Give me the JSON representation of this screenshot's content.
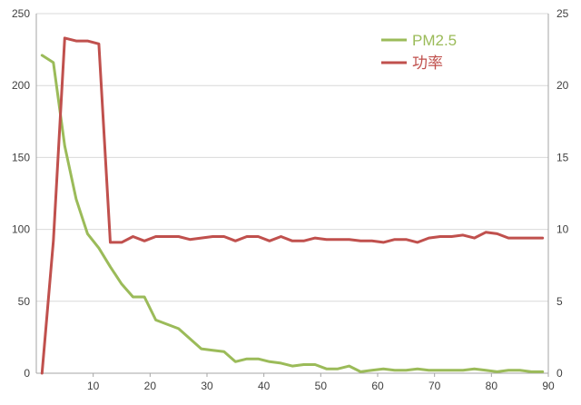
{
  "chart_data": {
    "type": "line",
    "x": [
      1,
      3,
      5,
      7,
      9,
      11,
      13,
      15,
      17,
      19,
      21,
      23,
      25,
      27,
      29,
      31,
      33,
      35,
      37,
      39,
      41,
      43,
      45,
      47,
      49,
      51,
      53,
      55,
      57,
      59,
      61,
      63,
      65,
      67,
      69,
      71,
      73,
      75,
      77,
      79,
      81,
      83,
      85,
      87,
      89
    ],
    "series": [
      {
        "name": "PM2.5",
        "axis": "left",
        "color": "#9bbb59",
        "values": [
          221,
          216,
          158,
          121,
          97,
          87,
          74,
          62,
          53,
          53,
          37,
          34,
          31,
          24,
          17,
          16,
          15,
          8,
          10,
          10,
          8,
          7,
          5,
          6,
          6,
          3,
          3,
          5,
          1,
          2,
          3,
          2,
          2,
          3,
          2,
          2,
          2,
          2,
          3,
          2,
          1,
          2,
          2,
          1,
          1
        ]
      },
      {
        "name": "功率",
        "axis": "right",
        "color": "#c0504d",
        "values": [
          0,
          9.2,
          23.3,
          23.1,
          23.1,
          22.9,
          9.1,
          9.1,
          9.5,
          9.2,
          9.5,
          9.5,
          9.5,
          9.3,
          9.4,
          9.5,
          9.5,
          9.2,
          9.5,
          9.5,
          9.2,
          9.5,
          9.2,
          9.2,
          9.4,
          9.3,
          9.3,
          9.3,
          9.2,
          9.2,
          9.1,
          9.3,
          9.3,
          9.1,
          9.4,
          9.5,
          9.5,
          9.6,
          9.4,
          9.8,
          9.7,
          9.4,
          9.4,
          9.4,
          9.4
        ]
      }
    ],
    "xlim": [
      0,
      90
    ],
    "ylim_left": [
      0,
      250
    ],
    "ylim_right": [
      0,
      25
    ],
    "x_ticks": [
      10,
      20,
      30,
      40,
      50,
      60,
      70,
      80,
      90
    ],
    "y_ticks_left": [
      0,
      50,
      100,
      150,
      200,
      250
    ],
    "y_ticks_right": [
      0,
      5,
      10,
      15,
      20,
      25
    ],
    "grid": "horizontal",
    "legend_position": "top-right"
  }
}
